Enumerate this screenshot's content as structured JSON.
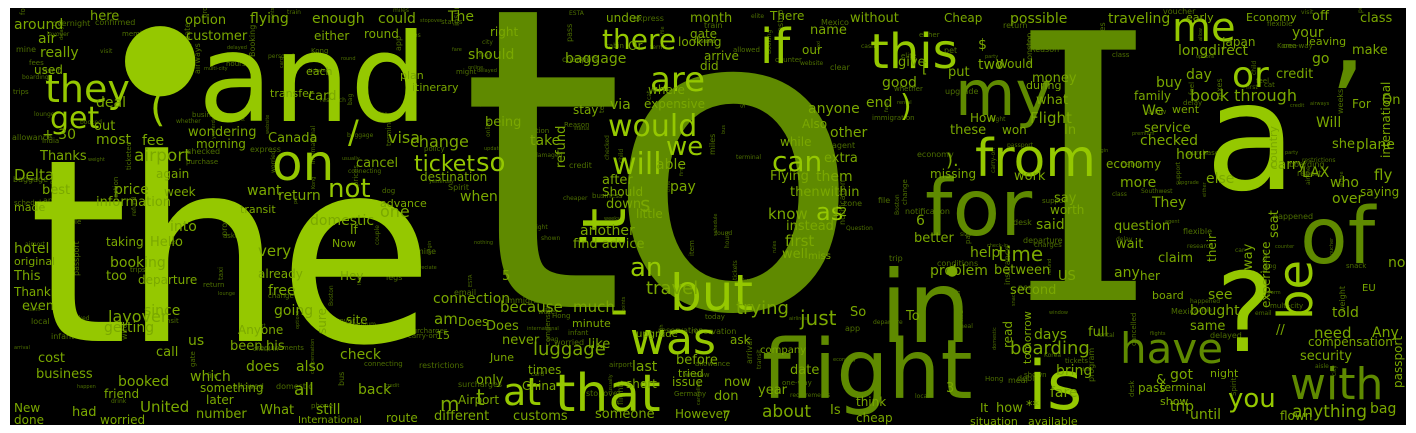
{
  "wordcloud": {
    "words": {
      "the": "the",
      "to": "to",
      "I": "I",
      "and": "and",
      "a": "a",
      "in": "in",
      "for": "for",
      "flight": "flight",
      "is": "is",
      "of": "of",
      "be": "be",
      "that": "that",
      "with": "with",
      "have": "have",
      "my": "my",
      "from": "from",
      "on": "on",
      "it": "it",
      "this": "this",
      "was": "was",
      "but": "but",
      "they": "they",
      "if": "if",
      "me": "me",
      "or": "or",
      "at": "at",
      "are": "are",
      "can": "can",
      "would": "would",
      "will": "will",
      "you": "you",
      "not": "not",
      "an": "an",
      "get": "get",
      "there": "there",
      "so": "so",
      "we": "we",
      "as": "as",
      "ticket": "ticket",
      "airport": "airport",
      "luggage": "luggage",
      "boarding": "boarding",
      "book through": "book through",
      "anything": "anything",
      "just": "just",
      "time": "time",
      "about": "about",
      "know": "know",
      "first": "first",
      "one": "one",
      "all": "all",
      "United": "United",
      "Delta": "Delta",
      "Canada": "Canada",
      "hotel": "hotel",
      "visa": "visa",
      "change": "change",
      "layover": "layover",
      "connection": "connection",
      "trying": "trying",
      "travel": "travel",
      "because": "because",
      "much": "much",
      "price": "price",
      "booking": "booking",
      "could": "could",
      "flying": "flying",
      "enough": "enough",
      "around": "around",
      "here": "here",
      "option": "option",
      "customer": "customer",
      "really": "really",
      "Thanks": "Thanks",
      "information": "information",
      "return": "return",
      "want": "want",
      "domestic": "domestic",
      "very": "very",
      "free": "free",
      "going": "going",
      "since": "since",
      "getting": "getting",
      "business": "business",
      "booked": "booked",
      "which": "which",
      "does": "does",
      "also": "also",
      "back": "back",
      "check": "check",
      "still": "still",
      "What": "What",
      "different": "different",
      "customs": "customs",
      "someone": "someone",
      "However": "However",
      "trip": "trip",
      "until": "until",
      "flown": "flown",
      "bag": "bag",
      "security": "security",
      "need": "need",
      "compensation": "compensation",
      "told": "told",
      "passport": "passport",
      "international": "international",
      "plane": "plane",
      "carry": "carry",
      "LAX": "LAX",
      "fly": "fly",
      "who": "who",
      "over": "over",
      "saying": "saying",
      "no": "no",
      "class": "class",
      "make": "make",
      "credit": "credit",
      "money": "money",
      "day": "day",
      "long": "long",
      "direct": "direct",
      "buy": "buy",
      "family": "family",
      "Japan": "Japan",
      "your": "your",
      "traveling": "traveling",
      "possible": "possible",
      "Cheap": "Cheap",
      "without": "without",
      "month": "month",
      "under": "under",
      "name": "name",
      "our": "our",
      "arrive": "arrive",
      "did": "did",
      "should": "should",
      "baggage": "baggage",
      "where": "where",
      "via": "via",
      "expensive": "expensive",
      "stay": "stay",
      "being": "being",
      "able": "able",
      "take": "take",
      "after": "after",
      "pay": "pay",
      "down": "down",
      "little": "little",
      "another": "another",
      "find advice": "find advice",
      "when": "when",
      "people": "people",
      "refund": "refund",
      "destination": "destination",
      "cancel": "cancel",
      "wondering": "wondering",
      "morning": "morning",
      "most": "most",
      "fee": "fee",
      "out": "out",
      "deal": "deal",
      "stop": "stop",
      "used": "used",
      "air": "air",
      "give": "give",
      "put": "put",
      "two": "two",
      "good": "good",
      "end": "end",
      "How": "How",
      "Flight": "Flight",
      "these": "these",
      "won": "won",
      "In": "In",
      "checked": "checked",
      "service": "service",
      "hour": "hour",
      "economy": "economy",
      "more": "more",
      "else": "else",
      "They": "They",
      "question": "question",
      "wait": "wait",
      "claim": "claim",
      "any": "any",
      "see": "see",
      "bought": "bought",
      "same": "same",
      "pass": "pass",
      "show": "show",
      "terminal": "terminal",
      "got": "got",
      "fare": "fare",
      "bring": "bring",
      "It": "It",
      "how": "how",
      "situation": "situation",
      "available": "available",
      "cheap": "cheap",
      "think": "think",
      "Is": "Is",
      "date": "date",
      "year": "year",
      "now": "now",
      "issue": "issue",
      "before": "before",
      "last": "last",
      "times": "times",
      "don": "don",
      "only": "only",
      "China": "China",
      "Airport": "Airport",
      "route": "route",
      "International": "International",
      "number": "number",
      "worried": "worried",
      "had": "had",
      "New": "New",
      "done": "done",
      "cost": "cost",
      "call": "call",
      "something": "something",
      "later": "later",
      "friend": "friend",
      "Anyone": "Anyone",
      "been": "been",
      "his": "his",
      "us": "us",
      "Hello": "Hello",
      "into": "into",
      "taking": "taking",
      "original": "original",
      "This": "This",
      "Thank": "Thank",
      "even": "even",
      "departure": "departure",
      "too": "too",
      "already": "already",
      "Hey": "Hey",
      "Now": "Now",
      "If": "If",
      "advance": "advance",
      "transit": "transit",
      "week": "week",
      "again": "again",
      "best": "best",
      "made": "made",
      "card": "card",
      "each": "each",
      "transfer": "transfer",
      "plan": "plan",
      "itinerary": "itinerary",
      "either": "either",
      "case": "case",
      "Hi": "Hi",
      "round": "round",
      "right": "right",
      "The": "The",
      "Or": "Or",
      "gate": "gate",
      "There": "There",
      "looking": "looking",
      "anyone": "anyone",
      "other": "other",
      "while": "while",
      "Also": "Also",
      "them": "them",
      "then": "then",
      "within": "within",
      "Flying": "Flying",
      "extra": "extra",
      "instead": "instead",
      "well": "well",
      "miss": "miss",
      "help": "help",
      "problem": "problem",
      "between": "between",
      "US": "US",
      "second": "second",
      "said": "said",
      "say": "say",
      "worth": "worth",
      "work": "work",
      "missing": "missing",
      "better": "better",
      "What2": "what",
      "during": "during",
      "Would": "Would",
      "Will": "Will",
      "leaving": "leaving",
      "go": "go",
      "Economy": "Economy",
      "off": "off",
      "early": "early",
      "arrival": "arrival",
      "pretty": "pretty",
      "Booking": "Booking",
      "answer": "answer",
      "minute": "minute",
      "upgrade": "upgrade",
      "Does": "Does",
      "am": "am",
      "never": "never",
      "like": "like",
      "June": "June",
      "tried": "tried",
      "short": "short",
      "ask": "ask",
      "company": "company",
      "To": "To",
      "days": "days",
      "full": "full",
      "tomorrow": "tomorrow",
      "read": "read",
      "Any": "Any",
      "So": "So",
      "sure": "sure",
      "site": "site",
      "experience": "experience",
      "seat": "seat",
      "country": "country",
      "she": "she",
      "EU": "EU",
      "their": "their",
      "way": "way",
      "her": "her",
      "board": "board",
      "Should": "Should",
      "We": "We",
      "For": "For",
      "On": "On",
      "went": "went",
      "night": "night",
      "Also2": "also",
      "possible2": "possible",
      "Thanks2": "Thanks"
    },
    "tiny": [
      "Booking",
      "answer",
      "Reason",
      "Question",
      "asked",
      "happen",
      "usually",
      "probably",
      "airline",
      "might",
      "city",
      "either",
      "Hong",
      "Kong",
      "vacation",
      "Spirit",
      "Southwest",
      "Boston",
      "Korea",
      "Mexico",
      "India",
      "Germany",
      "visit",
      "cabin",
      "research",
      "clear",
      "lounge",
      "delay",
      "delayed",
      "cancelled",
      "booked",
      "airlines",
      "airways",
      "ticketed",
      "ESTA",
      "passport",
      "immigration",
      "allow",
      "stopover",
      "overnight",
      "seats",
      "window",
      "aisle",
      "meal",
      "snack",
      "drink",
      "water",
      "airport",
      "hotel",
      "taxi",
      "bus",
      "train",
      "rental",
      "car",
      "express",
      "nonstop",
      "connecting",
      "layover",
      "transit",
      "international",
      "domestic",
      "terminal",
      "gate",
      "boarding",
      "pass",
      "check-in",
      "online",
      "app",
      "website",
      "agent",
      "counter",
      "desk",
      "phone",
      "email",
      "support",
      "status",
      "update",
      "notification",
      "alert",
      "schedule",
      "change",
      "time",
      "zone",
      "local",
      "arrival",
      "departure",
      "origin",
      "destination",
      "return",
      "round",
      "trip",
      "one-way",
      "multi-city",
      "fare",
      "class",
      "economy",
      "premium",
      "business",
      "first",
      "upgrade",
      "points",
      "miles",
      "status",
      "elite",
      "member",
      "program",
      "card",
      "credit",
      "debit",
      "cash",
      "refund",
      "voucher",
      "credit",
      "compensation",
      "claim",
      "form",
      "policy",
      "rules",
      "terms",
      "conditions",
      "restrictions",
      "fees",
      "charges",
      "taxes",
      "surcharges",
      "baggage",
      "allowance",
      "weight",
      "size",
      "carry-on",
      "personal",
      "item",
      "checked",
      "bag",
      "lost",
      "damaged",
      "delayed",
      "found",
      "report",
      "file",
      "file",
      "whether",
      "purchase",
      "shown",
      "happened",
      "mine",
      "weeks",
      "legs",
      "options",
      "flights",
      "tickets",
      "hours",
      "trips",
      "yesterday",
      "today",
      "itself",
      "couple",
      "party",
      "feel",
      "wife",
      "kids",
      "child",
      "infant",
      "pet",
      "dog",
      "cat",
      "nothing",
      "confirmed",
      "appreciate",
      "insurance",
      "reservation",
      "requirements",
      "allowed",
      "worried",
      "prices",
      "cheaper",
      "flexible"
    ]
  }
}
